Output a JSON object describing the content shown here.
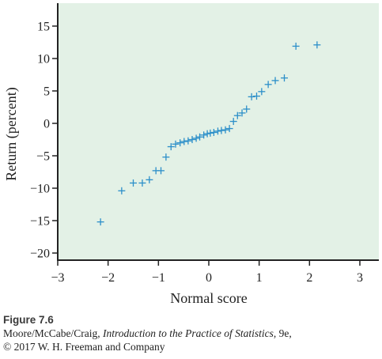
{
  "chart_data": {
    "type": "scatter",
    "marker": "+",
    "colors": {
      "plot_background": "#e3f1e6",
      "marker": "#2c8fc9",
      "axis": "#222222"
    },
    "xlabel": "Normal score",
    "ylabel": "Return (percent)",
    "xlim": [
      -3,
      3
    ],
    "ylim": [
      -20,
      18
    ],
    "xticks": [
      -3,
      -2,
      -1,
      0,
      1,
      2,
      3
    ],
    "xtick_labels": [
      "−3",
      "−2",
      "−1",
      "0",
      "1",
      "2",
      "3"
    ],
    "yticks": [
      -20,
      -15,
      -10,
      -5,
      0,
      5,
      10,
      15
    ],
    "ytick_labels": [
      "−20",
      "−15",
      "−10",
      "−5",
      "0",
      "5",
      "10",
      "15"
    ],
    "grid": false,
    "points": [
      {
        "x": -2.15,
        "y": -15.2
      },
      {
        "x": -1.73,
        "y": -10.4
      },
      {
        "x": -1.5,
        "y": -9.2
      },
      {
        "x": -1.32,
        "y": -9.2
      },
      {
        "x": -1.18,
        "y": -8.7
      },
      {
        "x": -1.05,
        "y": -7.3
      },
      {
        "x": -0.95,
        "y": -7.3
      },
      {
        "x": -0.85,
        "y": -5.2
      },
      {
        "x": -0.75,
        "y": -3.6
      },
      {
        "x": -0.66,
        "y": -3.2
      },
      {
        "x": -0.57,
        "y": -3.0
      },
      {
        "x": -0.49,
        "y": -2.8
      },
      {
        "x": -0.41,
        "y": -2.7
      },
      {
        "x": -0.33,
        "y": -2.5
      },
      {
        "x": -0.25,
        "y": -2.3
      },
      {
        "x": -0.18,
        "y": -2.1
      },
      {
        "x": -0.1,
        "y": -1.8
      },
      {
        "x": -0.03,
        "y": -1.6
      },
      {
        "x": 0.03,
        "y": -1.5
      },
      {
        "x": 0.1,
        "y": -1.4
      },
      {
        "x": 0.18,
        "y": -1.2
      },
      {
        "x": 0.25,
        "y": -1.1
      },
      {
        "x": 0.33,
        "y": -1.0
      },
      {
        "x": 0.41,
        "y": -0.8
      },
      {
        "x": 0.49,
        "y": 0.3
      },
      {
        "x": 0.57,
        "y": 1.2
      },
      {
        "x": 0.66,
        "y": 1.6
      },
      {
        "x": 0.75,
        "y": 2.2
      },
      {
        "x": 0.85,
        "y": 4.1
      },
      {
        "x": 0.95,
        "y": 4.2
      },
      {
        "x": 1.05,
        "y": 4.9
      },
      {
        "x": 1.18,
        "y": 6.0
      },
      {
        "x": 1.32,
        "y": 6.6
      },
      {
        "x": 1.5,
        "y": 7.0
      },
      {
        "x": 1.73,
        "y": 11.9
      },
      {
        "x": 2.15,
        "y": 12.1
      }
    ]
  },
  "caption": {
    "figure": "Figure 7.6",
    "line2_prefix": "Moore/McCabe/Craig, ",
    "line2_title": "Introduction to the Practice of Statistics",
    "line2_suffix": ", 9e,",
    "line3": "© 2017 W. H. Freeman and Company"
  }
}
